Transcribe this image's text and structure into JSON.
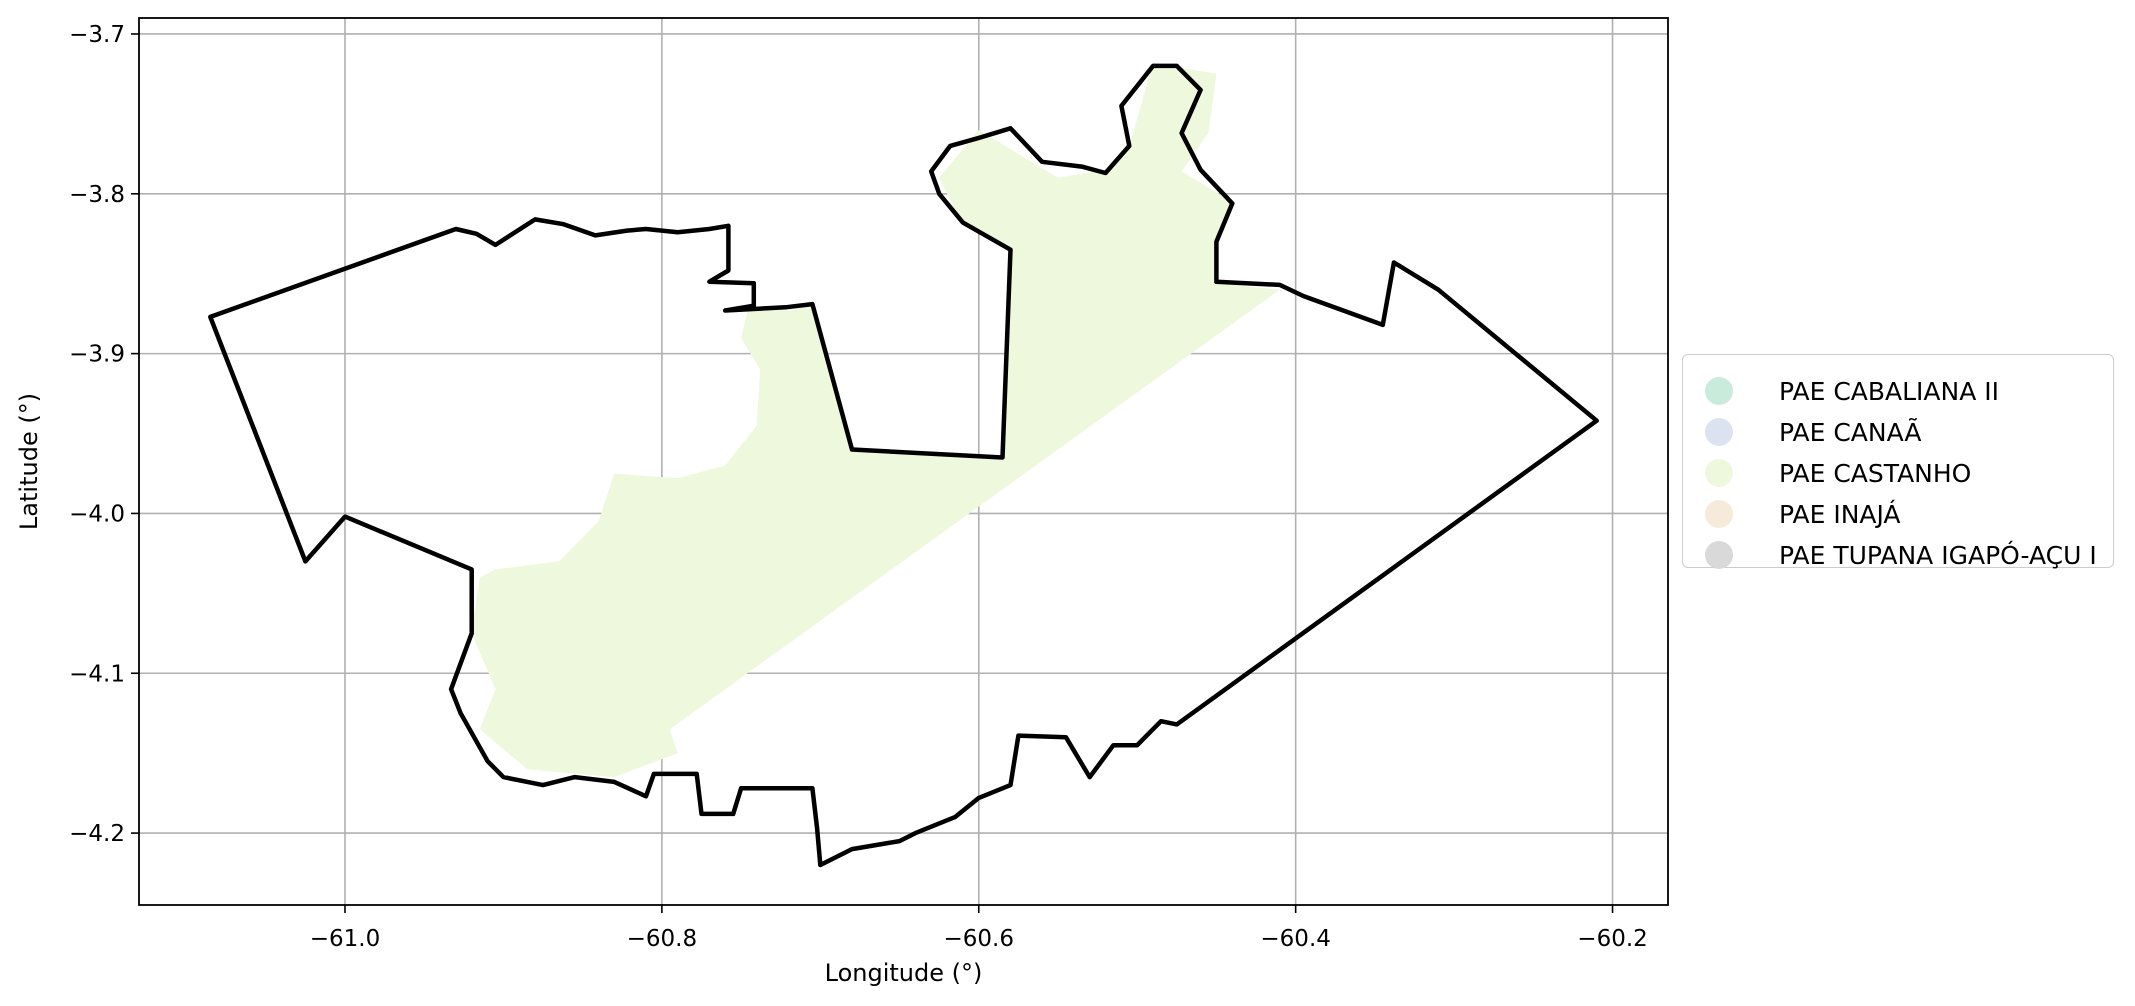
{
  "chart_data": {
    "type": "map",
    "title": "",
    "xlabel": "Longitude (°)",
    "ylabel": "Latitude (°)",
    "xlim": [
      -61.13,
      -60.165
    ],
    "ylim": [
      -4.245,
      -3.69
    ],
    "xticks": [
      -61.0,
      -60.8,
      -60.6,
      -60.4,
      -60.2
    ],
    "xtick_labels": [
      "−61.0",
      "−60.8",
      "−60.6",
      "−60.4",
      "−60.2"
    ],
    "yticks": [
      -3.7,
      -3.8,
      -3.9,
      -4.0,
      -4.1,
      -4.2
    ],
    "ytick_labels": [
      "−3.7",
      "−3.8",
      "−3.9",
      "−4.0",
      "−4.1",
      "−4.2"
    ],
    "grid": true,
    "legend_position": "center-right-outside",
    "legend": [
      {
        "name": "PAE CABALIANA II",
        "color": "#c9ebdb"
      },
      {
        "name": "PAE CANAÃ",
        "color": "#dbe3f0"
      },
      {
        "name": "PAE CASTANHO",
        "color": "#eef8dc"
      },
      {
        "name": "PAE INAJÁ",
        "color": "#f6eadb"
      },
      {
        "name": "PAE TUPANA IGAPÓ-AÇU I",
        "color": "#d9d9d9"
      }
    ],
    "fill_region": {
      "name": "PAE CASTANHO",
      "color": "#eef8dc",
      "coords": [
        [
          -60.745,
          -3.87
        ],
        [
          -60.75,
          -3.89
        ],
        [
          -60.738,
          -3.91
        ],
        [
          -60.74,
          -3.945
        ],
        [
          -60.76,
          -3.97
        ],
        [
          -60.79,
          -3.978
        ],
        [
          -60.83,
          -3.975
        ],
        [
          -60.84,
          -4.005
        ],
        [
          -60.865,
          -4.03
        ],
        [
          -60.905,
          -4.035
        ],
        [
          -60.915,
          -4.04
        ],
        [
          -60.92,
          -4.075
        ],
        [
          -60.905,
          -4.11
        ],
        [
          -60.915,
          -4.135
        ],
        [
          -60.885,
          -4.16
        ],
        [
          -60.83,
          -4.165
        ],
        [
          -60.79,
          -4.15
        ],
        [
          -60.795,
          -4.135
        ],
        [
          -60.41,
          -3.86
        ],
        [
          -60.45,
          -3.856
        ],
        [
          -60.45,
          -3.83
        ],
        [
          -60.44,
          -3.805
        ],
        [
          -60.472,
          -3.786
        ],
        [
          -60.455,
          -3.762
        ],
        [
          -60.45,
          -3.725
        ],
        [
          -60.49,
          -3.718
        ],
        [
          -60.505,
          -3.77
        ],
        [
          -60.52,
          -3.785
        ],
        [
          -60.55,
          -3.79
        ],
        [
          -60.6,
          -3.76
        ],
        [
          -60.625,
          -3.79
        ],
        [
          -60.61,
          -3.82
        ],
        [
          -60.58,
          -3.835
        ],
        [
          -60.585,
          -3.965
        ],
        [
          -60.68,
          -3.96
        ],
        [
          -60.705,
          -3.87
        ],
        [
          -60.72,
          -3.873
        ]
      ]
    },
    "boundary": {
      "color": "#000000",
      "coords": [
        [
          -61.085,
          -3.877
        ],
        [
          -60.93,
          -3.822
        ],
        [
          -60.917,
          -3.825
        ],
        [
          -60.905,
          -3.832
        ],
        [
          -60.88,
          -3.816
        ],
        [
          -60.862,
          -3.819
        ],
        [
          -60.842,
          -3.826
        ],
        [
          -60.822,
          -3.823
        ],
        [
          -60.81,
          -3.822
        ],
        [
          -60.79,
          -3.824
        ],
        [
          -60.77,
          -3.822
        ],
        [
          -60.758,
          -3.82
        ],
        [
          -60.758,
          -3.848
        ],
        [
          -60.77,
          -3.855
        ],
        [
          -60.742,
          -3.856
        ],
        [
          -60.742,
          -3.87
        ],
        [
          -60.76,
          -3.873
        ],
        [
          -60.722,
          -3.871
        ],
        [
          -60.705,
          -3.869
        ],
        [
          -60.68,
          -3.96
        ],
        [
          -60.585,
          -3.965
        ],
        [
          -60.58,
          -3.835
        ],
        [
          -60.61,
          -3.818
        ],
        [
          -60.625,
          -3.8
        ],
        [
          -60.63,
          -3.786
        ],
        [
          -60.618,
          -3.77
        ],
        [
          -60.6,
          -3.765
        ],
        [
          -60.58,
          -3.759
        ],
        [
          -60.56,
          -3.78
        ],
        [
          -60.535,
          -3.783
        ],
        [
          -60.52,
          -3.787
        ],
        [
          -60.505,
          -3.77
        ],
        [
          -60.51,
          -3.745
        ],
        [
          -60.49,
          -3.72
        ],
        [
          -60.475,
          -3.72
        ],
        [
          -60.46,
          -3.735
        ],
        [
          -60.472,
          -3.762
        ],
        [
          -60.46,
          -3.785
        ],
        [
          -60.44,
          -3.806
        ],
        [
          -60.45,
          -3.83
        ],
        [
          -60.45,
          -3.855
        ],
        [
          -60.41,
          -3.857
        ],
        [
          -60.395,
          -3.864
        ],
        [
          -60.345,
          -3.882
        ],
        [
          -60.338,
          -3.843
        ],
        [
          -60.31,
          -3.86
        ],
        [
          -60.21,
          -3.942
        ],
        [
          -60.475,
          -4.132
        ],
        [
          -60.485,
          -4.13
        ],
        [
          -60.5,
          -4.145
        ],
        [
          -60.515,
          -4.145
        ],
        [
          -60.53,
          -4.165
        ],
        [
          -60.545,
          -4.14
        ],
        [
          -60.575,
          -4.139
        ],
        [
          -60.58,
          -4.17
        ],
        [
          -60.6,
          -4.178
        ],
        [
          -60.615,
          -4.19
        ],
        [
          -60.64,
          -4.2
        ],
        [
          -60.65,
          -4.205
        ],
        [
          -60.68,
          -4.21
        ],
        [
          -60.7,
          -4.22
        ],
        [
          -60.702,
          -4.197
        ],
        [
          -60.705,
          -4.172
        ],
        [
          -60.75,
          -4.172
        ],
        [
          -60.755,
          -4.188
        ],
        [
          -60.775,
          -4.188
        ],
        [
          -60.778,
          -4.163
        ],
        [
          -60.805,
          -4.163
        ],
        [
          -60.81,
          -4.177
        ],
        [
          -60.83,
          -4.168
        ],
        [
          -60.855,
          -4.165
        ],
        [
          -60.875,
          -4.17
        ],
        [
          -60.9,
          -4.165
        ],
        [
          -60.91,
          -4.155
        ],
        [
          -60.927,
          -4.125
        ],
        [
          -60.933,
          -4.11
        ],
        [
          -60.92,
          -4.075
        ],
        [
          -60.92,
          -4.035
        ],
        [
          -61.0,
          -4.002
        ],
        [
          -61.025,
          -4.03
        ]
      ]
    }
  }
}
